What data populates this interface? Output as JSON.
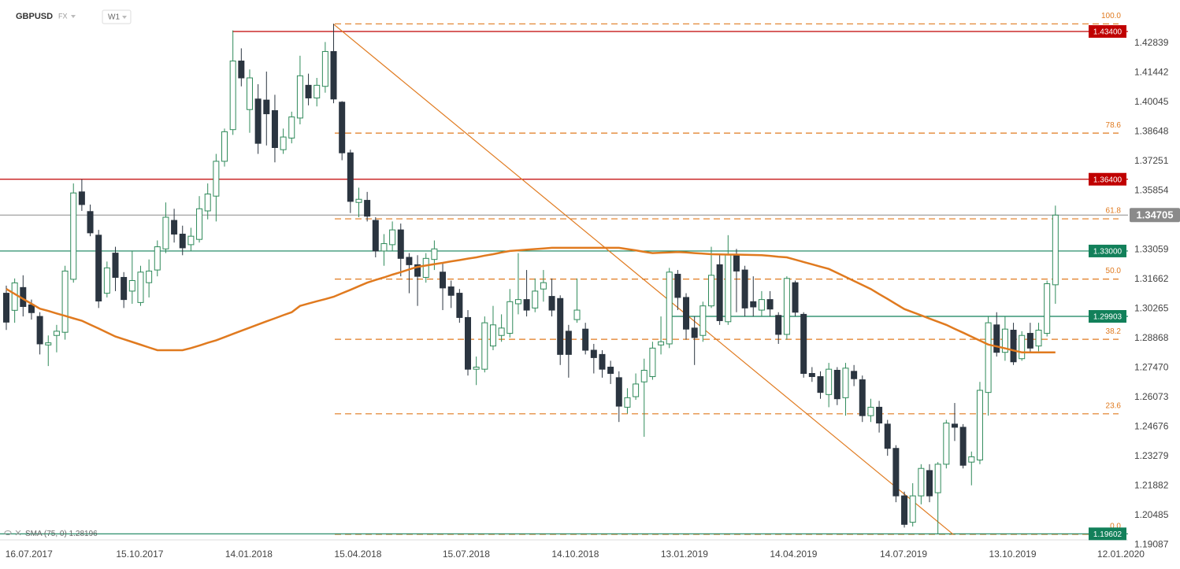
{
  "header": {
    "symbol": "GBPUSD",
    "market": "FX",
    "interval": "W1"
  },
  "chart_data": {
    "type": "candlestick",
    "xlim": [
      -0.75,
      133.65
    ],
    "xticks": [
      {
        "value": 2.7,
        "label": "16.07.2017"
      },
      {
        "value": 15.9,
        "label": "15.10.2017"
      },
      {
        "value": 28.9,
        "label": "14.01.2018"
      },
      {
        "value": 41.9,
        "label": "15.04.2018"
      },
      {
        "value": 54.8,
        "label": "15.07.2018"
      },
      {
        "value": 67.8,
        "label": "14.10.2018"
      },
      {
        "value": 80.8,
        "label": "13.01.2019"
      },
      {
        "value": 93.8,
        "label": "14.04.2019"
      },
      {
        "value": 106.9,
        "label": "14.07.2019"
      },
      {
        "value": 119.9,
        "label": "13.10.2019"
      },
      {
        "value": 132.8,
        "label": "12.01.2020"
      }
    ],
    "ylim": [
      1.1898,
      1.4489
    ],
    "yticks": [
      1.42839,
      1.41442,
      1.40045,
      1.38648,
      1.37251,
      1.35854,
      1.33059,
      1.31662,
      1.30265,
      1.28868,
      {
        "value": 1.2747,
        "label": "1.27470"
      },
      1.26073,
      1.24676,
      1.23279,
      1.21882,
      1.20485,
      1.19087
    ],
    "grid": false,
    "bull_color": "#2f8a5a",
    "bear_color": "#2b3540",
    "open": [
      1.31,
      1.3019,
      1.3127,
      1.3045,
      1.299,
      1.2855,
      1.29,
      1.2915,
      1.3166,
      1.358,
      1.3487,
      1.3375,
      1.31,
      1.329,
      1.3175,
      1.311,
      1.3056,
      1.315,
      1.321,
      1.331,
      1.3445,
      1.338,
      1.333,
      1.3355,
      1.349,
      1.356,
      1.3725,
      1.3875,
      1.42,
      1.397,
      1.402,
      1.4015,
      1.3965,
      1.378,
      1.3835,
      1.393,
      1.4085,
      1.4025,
      1.408,
      1.4245,
      1.4005,
      1.3765,
      1.353,
      1.354,
      1.3445,
      1.33,
      1.333,
      1.34,
      1.327,
      1.3235,
      1.3175,
      1.326,
      1.32,
      1.313,
      1.31,
      1.2985,
      1.274,
      1.274,
      1.285,
      1.29,
      1.291,
      1.305,
      1.307,
      1.303,
      1.312,
      1.3085,
      1.3075,
      1.292,
      1.2975,
      1.293,
      1.283,
      1.281,
      1.275,
      1.27,
      1.256,
      1.261,
      1.268,
      1.2705,
      1.2855,
      1.286,
      1.319,
      1.308,
      1.2935,
      1.29,
      1.304,
      1.3235,
      1.2965,
      1.328,
      1.321,
      1.306,
      1.302,
      1.307,
      1.2995,
      1.2905,
      1.315,
      1.3,
      1.272,
      1.2705,
      1.262,
      1.2735,
      1.2605,
      1.273,
      1.269,
      1.252,
      1.256,
      1.248,
      1.2365,
      1.214,
      1.2015,
      1.214,
      1.226,
      1.2155,
      1.229,
      1.248,
      1.2465,
      1.23,
      1.231,
      1.263,
      1.295,
      1.282,
      1.2925,
      1.279,
      1.291,
      1.285,
      1.291,
      1.314
    ],
    "high": [
      1.3136,
      1.317,
      1.3185,
      1.307,
      1.301,
      1.29,
      1.295,
      1.323,
      1.362,
      1.364,
      1.352,
      1.34,
      1.325,
      1.332,
      1.32,
      1.33,
      1.323,
      1.326,
      1.335,
      1.353,
      1.35,
      1.342,
      1.341,
      1.356,
      1.362,
      1.376,
      1.388,
      1.4345,
      1.426,
      1.416,
      1.409,
      1.415,
      1.404,
      1.388,
      1.396,
      1.4225,
      1.414,
      1.412,
      1.429,
      1.4376,
      1.401,
      1.378,
      1.36,
      1.358,
      1.346,
      1.338,
      1.344,
      1.343,
      1.329,
      1.328,
      1.329,
      1.335,
      1.324,
      1.316,
      1.312,
      1.302,
      1.28,
      1.299,
      1.304,
      1.3,
      1.312,
      1.329,
      1.321,
      1.317,
      1.321,
      1.317,
      1.309,
      1.295,
      1.317,
      1.296,
      1.286,
      1.283,
      1.278,
      1.273,
      1.265,
      1.272,
      1.279,
      1.287,
      1.299,
      1.322,
      1.321,
      1.31,
      1.299,
      1.306,
      1.332,
      1.328,
      1.3375,
      1.331,
      1.323,
      1.318,
      1.311,
      1.311,
      1.301,
      1.318,
      1.316,
      1.301,
      1.275,
      1.273,
      1.277,
      1.275,
      1.277,
      1.276,
      1.271,
      1.26,
      1.259,
      1.25,
      1.238,
      1.216,
      1.22,
      1.229,
      1.229,
      1.23,
      1.25,
      1.258,
      1.248,
      1.235,
      1.268,
      1.299,
      1.301,
      1.299,
      1.296,
      1.292,
      1.296,
      1.296,
      1.316,
      1.3515
    ],
    "low": [
      1.2926,
      1.296,
      1.299,
      1.2975,
      1.281,
      1.2755,
      1.282,
      1.288,
      1.315,
      1.349,
      1.337,
      1.303,
      1.308,
      1.311,
      1.303,
      1.305,
      1.304,
      1.308,
      1.318,
      1.329,
      1.334,
      1.328,
      1.33,
      1.334,
      1.345,
      1.344,
      1.37,
      1.385,
      1.408,
      1.386,
      1.376,
      1.38,
      1.372,
      1.376,
      1.381,
      1.39,
      1.399,
      1.3985,
      1.405,
      1.4,
      1.373,
      1.348,
      1.346,
      1.344,
      1.327,
      1.323,
      1.33,
      1.318,
      1.31,
      1.304,
      1.315,
      1.321,
      1.302,
      1.303,
      1.296,
      1.271,
      1.2665,
      1.2725,
      1.283,
      1.287,
      1.289,
      1.3,
      1.299,
      1.301,
      1.306,
      1.299,
      1.276,
      1.27,
      1.296,
      1.281,
      1.272,
      1.27,
      1.267,
      1.249,
      1.253,
      1.2595,
      1.242,
      1.269,
      1.281,
      1.284,
      1.302,
      1.288,
      1.276,
      1.287,
      1.303,
      1.295,
      1.295,
      1.301,
      1.299,
      1.299,
      1.299,
      1.299,
      1.286,
      1.288,
      1.299,
      1.27,
      1.268,
      1.26,
      1.256,
      1.257,
      1.252,
      1.266,
      1.249,
      1.249,
      1.244,
      1.233,
      1.211,
      1.199,
      1.1995,
      1.21,
      1.211,
      1.1958,
      1.227,
      1.24,
      1.227,
      1.219,
      1.229,
      1.252,
      1.28,
      1.278,
      1.276,
      1.278,
      1.282,
      1.2825,
      1.2895,
      1.305
    ],
    "close": [
      1.2963,
      1.3149,
      1.3037,
      1.3008,
      1.286,
      1.2865,
      1.292,
      1.3205,
      1.3575,
      1.352,
      1.3386,
      1.3063,
      1.322,
      1.3175,
      1.307,
      1.316,
      1.32,
      1.3205,
      1.332,
      1.346,
      1.338,
      1.3315,
      1.337,
      1.35,
      1.357,
      1.3725,
      1.3865,
      1.42,
      1.412,
      1.412,
      1.381,
      1.395,
      1.379,
      1.384,
      1.3935,
      1.413,
      1.4025,
      1.4085,
      1.4245,
      1.402,
      1.3765,
      1.3535,
      1.3545,
      1.3465,
      1.33,
      1.3335,
      1.34,
      1.3265,
      1.3235,
      1.318,
      1.3265,
      1.331,
      1.3125,
      1.309,
      1.2985,
      1.274,
      1.275,
      1.296,
      1.295,
      1.2935,
      1.306,
      1.307,
      1.302,
      1.311,
      1.315,
      1.302,
      1.281,
      1.281,
      1.302,
      1.283,
      1.2795,
      1.274,
      1.272,
      1.2565,
      1.2605,
      1.267,
      1.2735,
      1.284,
      1.287,
      1.32,
      1.308,
      1.293,
      1.289,
      1.304,
      1.3185,
      1.297,
      1.3285,
      1.3205,
      1.303,
      1.3035,
      1.307,
      1.3025,
      1.2905,
      1.317,
      1.301,
      1.272,
      1.2705,
      1.263,
      1.274,
      1.26,
      1.2745,
      1.2695,
      1.252,
      1.256,
      1.2485,
      1.2365,
      1.214,
      1.2005,
      1.214,
      1.227,
      1.214,
      1.229,
      1.2485,
      1.2465,
      1.2285,
      1.2325,
      1.264,
      1.296,
      1.282,
      1.293,
      1.2775,
      1.29,
      1.284,
      1.2925,
      1.3145,
      1.347
    ],
    "series": [
      {
        "name": "SMA (75, 0)",
        "color": "#e07a1f",
        "last_value": 1.28196,
        "values": [
          1.312,
          1.3097,
          1.3073,
          1.305,
          1.3027,
          1.3016,
          1.3004,
          1.2993,
          1.2981,
          1.297,
          1.2951,
          1.2933,
          1.2914,
          1.2895,
          1.2882,
          1.2869,
          1.2856,
          1.2843,
          1.283,
          1.283,
          1.283,
          1.283,
          1.284,
          1.2852,
          1.2865,
          1.2877,
          1.2892,
          1.2907,
          1.2922,
          1.2937,
          1.2952,
          1.2967,
          1.2981,
          1.2996,
          1.301,
          1.304,
          1.3051,
          1.3062,
          1.3072,
          1.3083,
          1.31,
          1.3116,
          1.3133,
          1.315,
          1.3163,
          1.3175,
          1.3188,
          1.32,
          1.3213,
          1.3225,
          1.3231,
          1.3238,
          1.3244,
          1.3251,
          1.3257,
          1.3264,
          1.327,
          1.3278,
          1.3285,
          1.3293,
          1.33,
          1.3303,
          1.3306,
          1.3309,
          1.3312,
          1.3315,
          1.3315,
          1.3315,
          1.3315,
          1.3315,
          1.3315,
          1.3315,
          1.3315,
          1.3315,
          1.3309,
          1.3303,
          1.3296,
          1.329,
          1.3292,
          1.3293,
          1.3295,
          1.3293,
          1.329,
          1.3288,
          1.3285,
          1.3284,
          1.3283,
          1.3283,
          1.3282,
          1.3281,
          1.328,
          1.3277,
          1.3273,
          1.327,
          1.3259,
          1.3248,
          1.3237,
          1.3226,
          1.3215,
          1.3196,
          1.3177,
          1.3158,
          1.3139,
          1.312,
          1.3096,
          1.3073,
          1.3049,
          1.3025,
          1.301,
          1.2995,
          1.298,
          1.2965,
          1.295,
          1.2931,
          1.2913,
          1.2894,
          1.2876,
          1.2857,
          1.2848,
          1.2839,
          1.2829,
          1.282,
          1.282,
          1.282,
          1.282,
          1.282
        ]
      }
    ],
    "price_lines": [
      {
        "value": 1.434,
        "label": "1.43400",
        "color": "#c00000"
      },
      {
        "value": 1.364,
        "label": "1.36400",
        "color": "#c00000"
      },
      {
        "value": 1.33,
        "label": "1.33000",
        "color": "#12805a"
      },
      {
        "value": 1.29903,
        "label": "1.29903",
        "color": "#12805a"
      },
      {
        "value": 1.19602,
        "label": "1.19602",
        "color": "#12805a"
      }
    ],
    "current_price": {
      "value": 1.34705,
      "label": "1.34705",
      "color": "#8a8a8a"
    },
    "fibonacci": {
      "high": 1.4376,
      "low": 1.1958,
      "color": "#e07a1f",
      "levels": [
        {
          "value": 100,
          "label": "100.0"
        },
        78.6,
        61.8,
        {
          "value": 50,
          "label": "50.0"
        },
        38.2,
        23.6,
        {
          "value": 0,
          "label": "0.0"
        }
      ]
    }
  }
}
